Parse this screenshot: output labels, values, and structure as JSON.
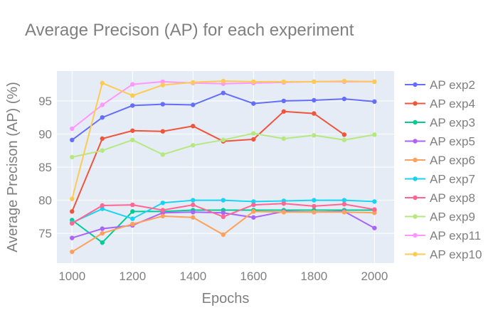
{
  "chart_data": {
    "type": "line",
    "title": "Average Precison (AP) for each experiment",
    "xlabel": "Epochs",
    "ylabel": "Average Precison (AP) (%)",
    "xlim": [
      950,
      2065
    ],
    "ylim": [
      70.5,
      99.5
    ],
    "xticks": [
      1000,
      1200,
      1400,
      1600,
      1800,
      2000
    ],
    "yticks": [
      75,
      80,
      85,
      90,
      95
    ],
    "grid": true,
    "legend_position": "right",
    "series": [
      {
        "name": "AP exp2",
        "color": "#636efa",
        "x": [
          1000,
          1100,
          1200,
          1300,
          1400,
          1500,
          1600,
          1700,
          1800,
          1900,
          2000
        ],
        "y": [
          89.1,
          92.5,
          94.3,
          94.5,
          94.4,
          96.2,
          94.6,
          95.0,
          95.1,
          95.3,
          94.9
        ]
      },
      {
        "name": "AP exp4",
        "color": "#ef553b",
        "x": [
          1000,
          1100,
          1200,
          1300,
          1400,
          1500,
          1600,
          1700,
          1800,
          1900
        ],
        "y": [
          78.3,
          89.3,
          90.5,
          90.4,
          91.2,
          88.9,
          89.2,
          93.4,
          93.1,
          89.9
        ]
      },
      {
        "name": "AP exp3",
        "color": "#00cc96",
        "x": [
          1000,
          1100,
          1200,
          1300,
          1400,
          1500,
          1600,
          1700,
          1800,
          1900,
          2000
        ],
        "y": [
          77.0,
          73.6,
          78.3,
          78.3,
          78.5,
          78.5,
          78.5,
          78.5,
          78.5,
          78.5,
          78.5
        ]
      },
      {
        "name": "AP exp5",
        "color": "#ab63fa",
        "x": [
          1000,
          1100,
          1200,
          1300,
          1400,
          1500,
          1600,
          1700,
          1800,
          1900,
          2000
        ],
        "y": [
          74.3,
          75.7,
          76.2,
          78.1,
          78.2,
          78.1,
          77.4,
          78.3,
          78.2,
          78.3,
          75.8
        ]
      },
      {
        "name": "AP exp6",
        "color": "#ffa15a",
        "x": [
          1000,
          1100,
          1200,
          1300,
          1400,
          1500,
          1600,
          1700,
          1800,
          1900,
          2000
        ],
        "y": [
          72.2,
          75.0,
          76.4,
          77.6,
          77.4,
          74.8,
          78.3,
          78.2,
          78.2,
          78.2,
          78.1
        ]
      },
      {
        "name": "AP exp7",
        "color": "#19d3f3",
        "x": [
          1000,
          1100,
          1200,
          1300,
          1400,
          1500,
          1600,
          1700,
          1800,
          1900,
          2000
        ],
        "y": [
          76.6,
          78.7,
          77.2,
          79.6,
          80.0,
          80.0,
          79.8,
          79.9,
          80.0,
          80.0,
          79.8
        ]
      },
      {
        "name": "AP exp8",
        "color": "#ff6692",
        "x": [
          1000,
          1100,
          1200,
          1300,
          1400,
          1500,
          1600,
          1700,
          1800,
          1900,
          2000
        ],
        "y": [
          76.5,
          79.2,
          79.3,
          78.5,
          79.3,
          77.5,
          79.3,
          79.5,
          79.1,
          79.4,
          78.6
        ]
      },
      {
        "name": "AP exp9",
        "color": "#b6e880",
        "x": [
          1000,
          1100,
          1200,
          1300,
          1400,
          1500,
          1600,
          1700,
          1800,
          1900,
          2000
        ],
        "y": [
          86.5,
          87.5,
          89.1,
          86.9,
          88.3,
          89.1,
          90.1,
          89.3,
          89.8,
          89.1,
          89.9
        ]
      },
      {
        "name": "AP exp11",
        "color": "#ff97ff",
        "x": [
          1000,
          1100,
          1200,
          1300,
          1400,
          1500,
          1600,
          1700,
          1800,
          1900,
          2000
        ],
        "y": [
          90.8,
          94.4,
          97.5,
          97.9,
          97.7,
          97.6,
          97.7,
          97.8,
          97.9,
          97.9,
          97.9
        ]
      },
      {
        "name": "AP exp10",
        "color": "#fecb52",
        "x": [
          1000,
          1100,
          1200,
          1300,
          1400,
          1500,
          1600,
          1700,
          1800,
          1900,
          2000
        ],
        "y": [
          80.2,
          97.7,
          95.8,
          97.4,
          97.8,
          98.0,
          97.9,
          97.9,
          97.9,
          98.0,
          97.9
        ]
      }
    ]
  }
}
